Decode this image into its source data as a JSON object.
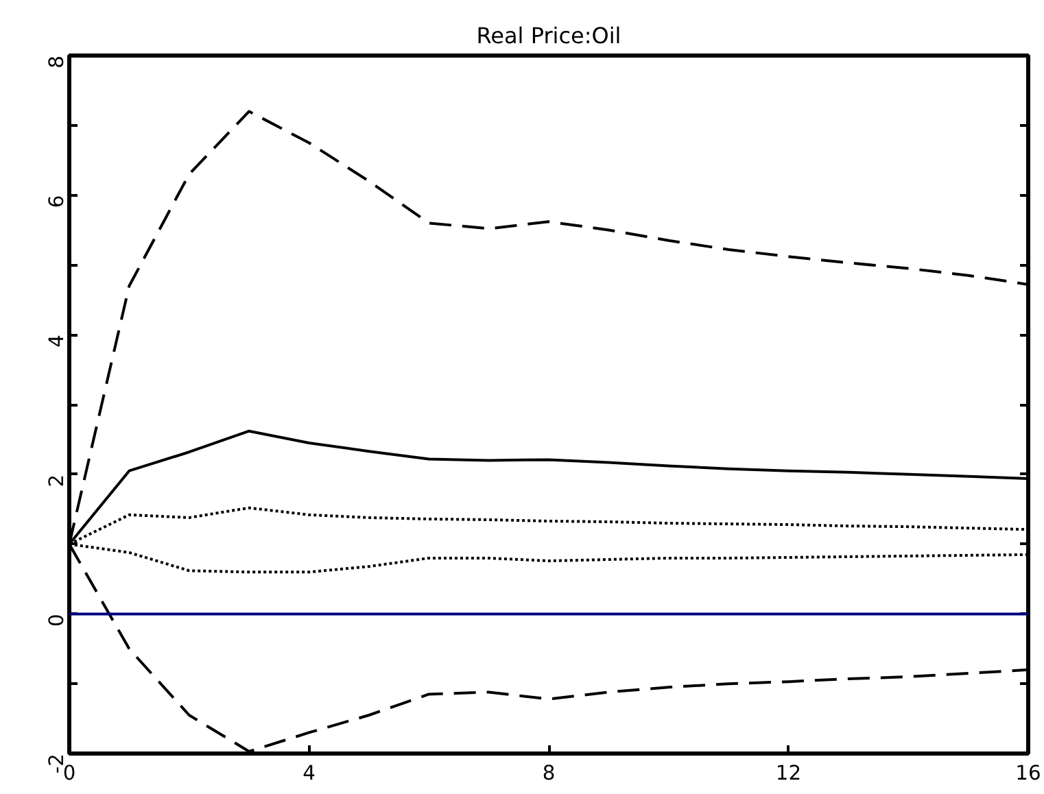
{
  "chart_data": {
    "type": "line",
    "title": "Real Price:Oil",
    "x": [
      0,
      1,
      2,
      3,
      4,
      5,
      6,
      7,
      8,
      9,
      10,
      11,
      12,
      13,
      14,
      15,
      16
    ],
    "series": [
      {
        "color": "#000000",
        "line_style": "dashed",
        "values": [
          1.0,
          4.7,
          6.3,
          7.2,
          6.75,
          6.2,
          5.6,
          5.52,
          5.62,
          5.5,
          5.35,
          5.22,
          5.12,
          5.03,
          4.95,
          4.85,
          4.72
        ]
      },
      {
        "color": "#000000",
        "line_style": "solid",
        "values": [
          1.0,
          2.05,
          2.32,
          2.62,
          2.45,
          2.33,
          2.22,
          2.2,
          2.21,
          2.17,
          2.12,
          2.08,
          2.05,
          2.03,
          2.0,
          1.97,
          1.94
        ]
      },
      {
        "color": "#000000",
        "line_style": "dotted",
        "values": [
          1.0,
          1.42,
          1.38,
          1.52,
          1.42,
          1.38,
          1.36,
          1.35,
          1.33,
          1.32,
          1.3,
          1.29,
          1.28,
          1.26,
          1.25,
          1.23,
          1.21
        ]
      },
      {
        "color": "#000000",
        "line_style": "dotted",
        "values": [
          1.0,
          0.88,
          0.62,
          0.6,
          0.6,
          0.68,
          0.8,
          0.8,
          0.76,
          0.78,
          0.8,
          0.8,
          0.81,
          0.82,
          0.83,
          0.84,
          0.85
        ]
      },
      {
        "color": "#000000",
        "line_style": "dashed",
        "values": [
          1.0,
          -0.5,
          -1.45,
          -1.97,
          -1.7,
          -1.45,
          -1.15,
          -1.12,
          -1.22,
          -1.12,
          -1.05,
          -1.0,
          -0.97,
          -0.93,
          -0.9,
          -0.85,
          -0.8
        ]
      }
    ],
    "xlim": [
      0,
      16
    ],
    "ylim": [
      -2,
      8
    ],
    "xticks": [
      0,
      4,
      8,
      12,
      16
    ],
    "yticks": [
      -2,
      {
        "value": -1,
        "label": null
      },
      0,
      {
        "value": 1,
        "label": null
      },
      2,
      {
        "value": 3,
        "label": null
      },
      4,
      {
        "value": 5,
        "label": null
      },
      6,
      {
        "value": 7,
        "label": null
      },
      8
    ],
    "ref_lines": [
      {
        "axis": "y",
        "value": 0,
        "label": null,
        "color": "#000080"
      }
    ],
    "grid": false,
    "marker": "none"
  }
}
